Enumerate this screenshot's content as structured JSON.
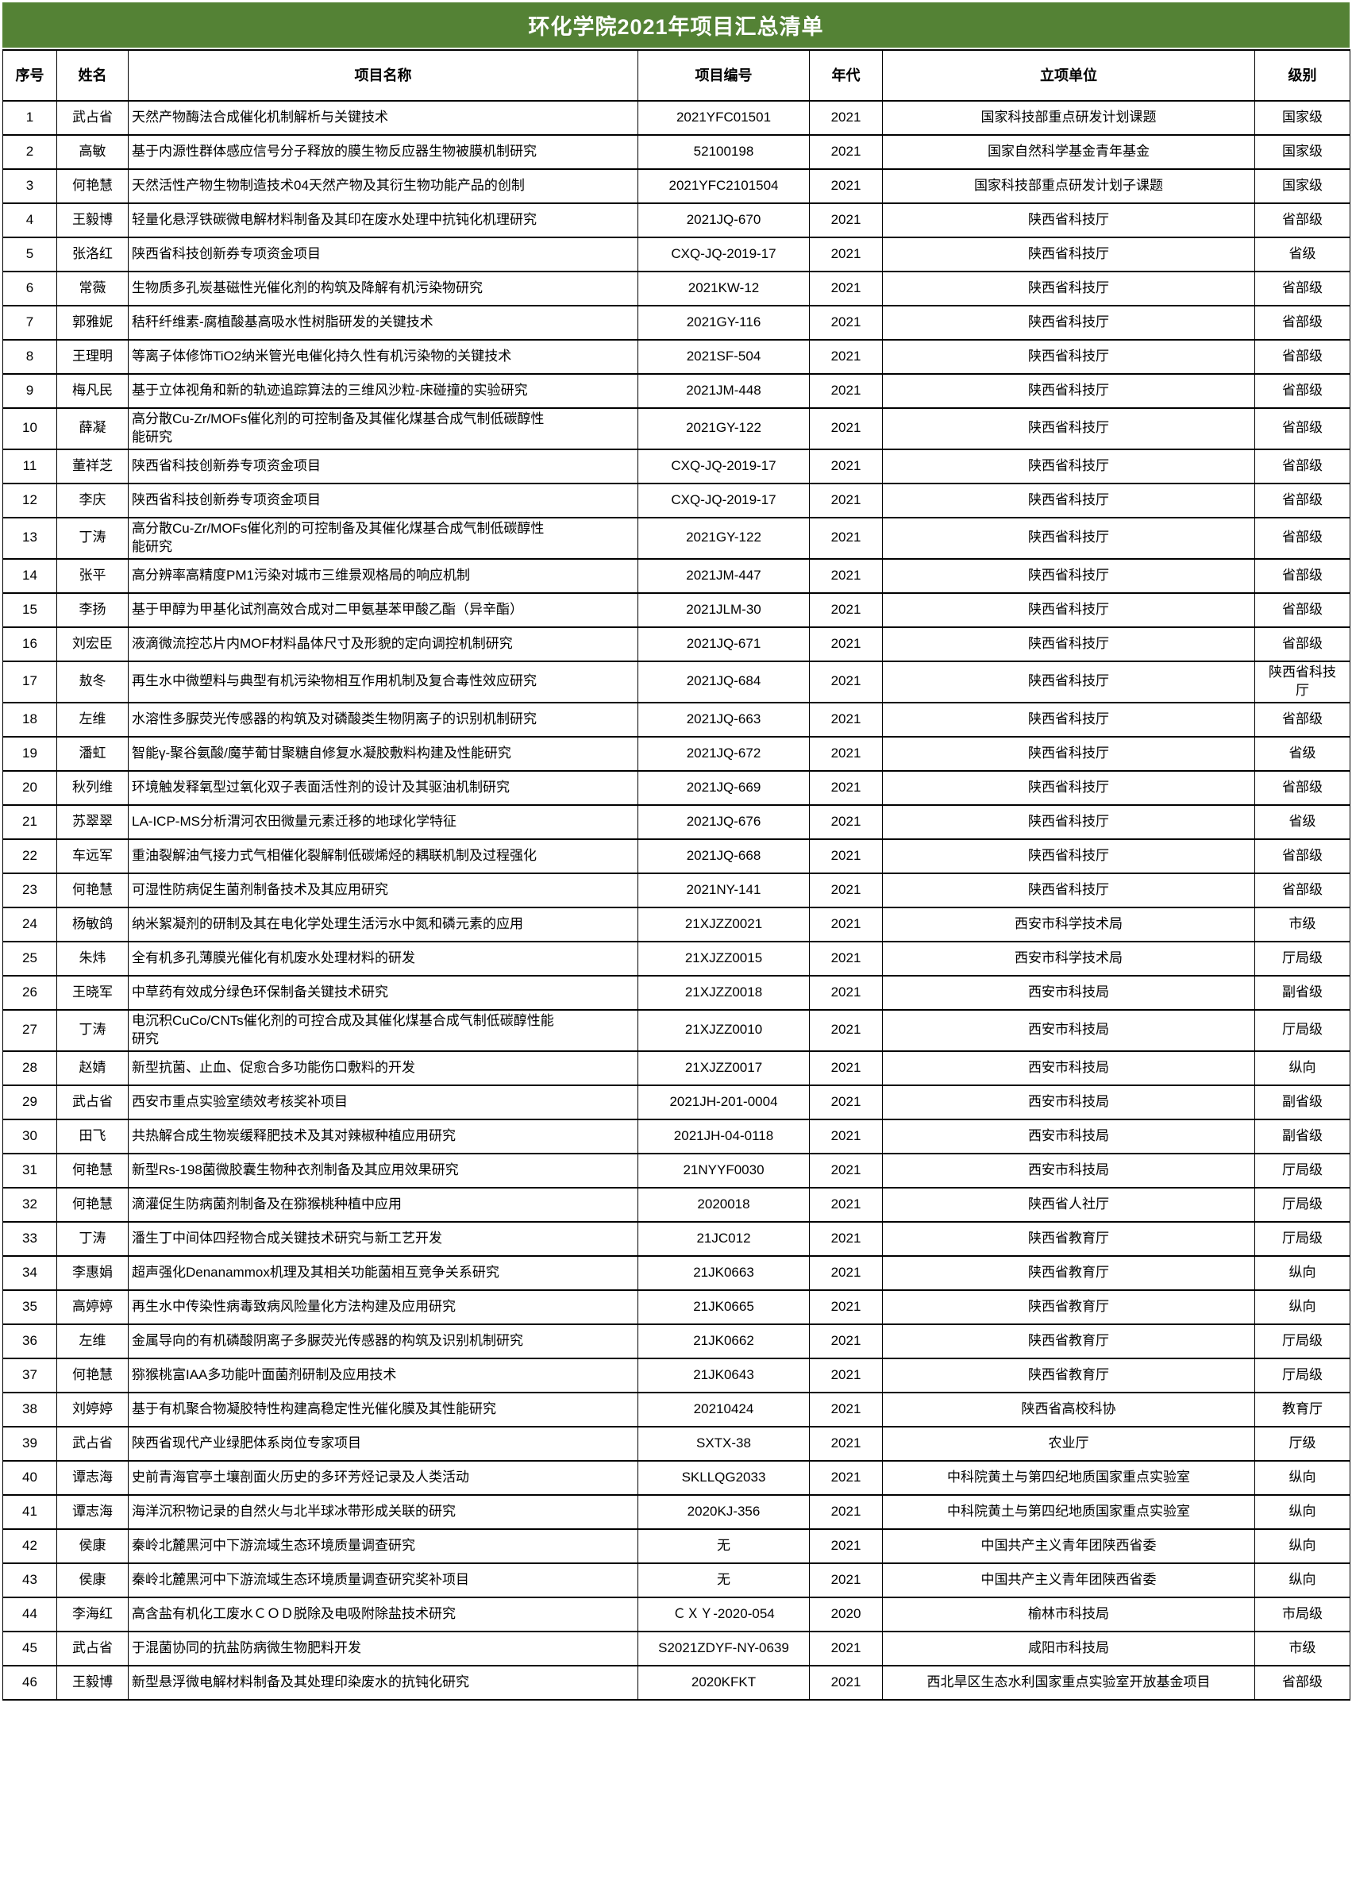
{
  "title": "环化学院2021年项目汇总清单",
  "theme": {
    "title_background": "#548235",
    "title_text_color": "#ffffff",
    "border_color": "#000000",
    "body_background": "#ffffff"
  },
  "table": {
    "columns": [
      "序号",
      "姓名",
      "项目名称",
      "项目编号",
      "年代",
      "立项单位",
      "级别"
    ],
    "rows": [
      [
        "1",
        "武占省",
        "天然产物酶法合成催化机制解析与关键技术",
        "2021YFC01501",
        "2021",
        "国家科技部重点研发计划课题",
        "国家级"
      ],
      [
        "2",
        "高敏",
        "基于内源性群体感应信号分子释放的膜生物反应器生物被膜机制研究",
        "52100198",
        "2021",
        "国家自然科学基金青年基金",
        "国家级"
      ],
      [
        "3",
        "何艳慧",
        "天然活性产物生物制造技术04天然产物及其衍生物功能产品的创制",
        "2021YFC2101504",
        "2021",
        "国家科技部重点研发计划子课题",
        "国家级"
      ],
      [
        "4",
        "王毅博",
        "轻量化悬浮铁碳微电解材料制备及其印在废水处理中抗钝化机理研究",
        "2021JQ-670",
        "2021",
        "陕西省科技厅",
        "省部级"
      ],
      [
        "5",
        "张洛红",
        "陕西省科技创新券专项资金项目",
        "CXQ-JQ-2019-17",
        "2021",
        "陕西省科技厅",
        "省级"
      ],
      [
        "6",
        "常薇",
        "生物质多孔炭基磁性光催化剂的构筑及降解有机污染物研究",
        "2021KW-12",
        "2021",
        "陕西省科技厅",
        "省部级"
      ],
      [
        "7",
        "郭雅妮",
        "秸秆纤维素-腐植酸基高吸水性树脂研发的关键技术",
        "2021GY-116",
        "2021",
        "陕西省科技厅",
        "省部级"
      ],
      [
        "8",
        "王理明",
        "等离子体修饰TiO2纳米管光电催化持久性有机污染物的关键技术",
        "2021SF-504",
        "2021",
        "陕西省科技厅",
        "省部级"
      ],
      [
        "9",
        "梅凡民",
        "基于立体视角和新的轨迹追踪算法的三维风沙粒-床碰撞的实验研究",
        "2021JM-448",
        "2021",
        "陕西省科技厅",
        "省部级"
      ],
      [
        "10",
        "薛凝",
        "高分散Cu-Zr/MOFs催化剂的可控制备及其催化煤基合成气制低碳醇性能研究",
        "2021GY-122",
        "2021",
        "陕西省科技厅",
        "省部级"
      ],
      [
        "11",
        "董祥芝",
        "陕西省科技创新券专项资金项目",
        "CXQ-JQ-2019-17",
        "2021",
        "陕西省科技厅",
        "省部级"
      ],
      [
        "12",
        "李庆",
        "陕西省科技创新券专项资金项目",
        "CXQ-JQ-2019-17",
        "2021",
        "陕西省科技厅",
        "省部级"
      ],
      [
        "13",
        "丁涛",
        "高分散Cu-Zr/MOFs催化剂的可控制备及其催化煤基合成气制低碳醇性能研究",
        "2021GY-122",
        "2021",
        "陕西省科技厅",
        "省部级"
      ],
      [
        "14",
        "张平",
        "高分辨率高精度PM1污染对城市三维景观格局的响应机制",
        "2021JM-447",
        "2021",
        "陕西省科技厅",
        "省部级"
      ],
      [
        "15",
        "李扬",
        "基于甲醇为甲基化试剂高效合成对二甲氨基苯甲酸乙酯（异辛酯）",
        "2021JLM-30",
        "2021",
        "陕西省科技厅",
        "省部级"
      ],
      [
        "16",
        "刘宏臣",
        "液滴微流控芯片内MOF材料晶体尺寸及形貌的定向调控机制研究",
        "2021JQ-671",
        "2021",
        "陕西省科技厅",
        "省部级"
      ],
      [
        "17",
        "敖冬",
        "再生水中微塑料与典型有机污染物相互作用机制及复合毒性效应研究",
        "2021JQ-684",
        "2021",
        "陕西省科技厅",
        "陕西省科技厅"
      ],
      [
        "18",
        "左维",
        "水溶性多脲荧光传感器的构筑及对磷酸类生物阴离子的识别机制研究",
        "2021JQ-663",
        "2021",
        "陕西省科技厅",
        "省部级"
      ],
      [
        "19",
        "潘虹",
        "智能γ-聚谷氨酸/魔芋葡甘聚糖自修复水凝胶敷料构建及性能研究",
        "2021JQ-672",
        "2021",
        "陕西省科技厅",
        "省级"
      ],
      [
        "20",
        "秋列维",
        "环境触发释氧型过氧化双子表面活性剂的设计及其驱油机制研究",
        "2021JQ-669",
        "2021",
        "陕西省科技厅",
        "省部级"
      ],
      [
        "21",
        "苏翠翠",
        "LA-ICP-MS分析渭河农田微量元素迁移的地球化学特征",
        "2021JQ-676",
        "2021",
        "陕西省科技厅",
        "省级"
      ],
      [
        "22",
        "车远军",
        "重油裂解油气接力式气相催化裂解制低碳烯烃的耦联机制及过程强化",
        "2021JQ-668",
        "2021",
        "陕西省科技厅",
        "省部级"
      ],
      [
        "23",
        "何艳慧",
        "可湿性防病促生菌剂制备技术及其应用研究",
        "2021NY-141",
        "2021",
        "陕西省科技厅",
        "省部级"
      ],
      [
        "24",
        "杨敏鸽",
        "纳米絮凝剂的研制及其在电化学处理生活污水中氮和磷元素的应用",
        "21XJZZ0021",
        "2021",
        "西安市科学技术局",
        "市级"
      ],
      [
        "25",
        "朱炜",
        "全有机多孔薄膜光催化有机废水处理材料的研发",
        "21XJZZ0015",
        "2021",
        "西安市科学技术局",
        "厅局级"
      ],
      [
        "26",
        "王晓军",
        "中草药有效成分绿色环保制备关键技术研究",
        "21XJZZ0018",
        "2021",
        "西安市科技局",
        "副省级"
      ],
      [
        "27",
        "丁涛",
        "电沉积CuCo/CNTs催化剂的可控合成及其催化煤基合成气制低碳醇性能研究",
        "21XJZZ0010",
        "2021",
        "西安市科技局",
        "厅局级"
      ],
      [
        "28",
        "赵婧",
        "新型抗菌、止血、促愈合多功能伤口敷料的开发",
        "21XJZZ0017",
        "2021",
        "西安市科技局",
        "纵向"
      ],
      [
        "29",
        "武占省",
        "西安市重点实验室绩效考核奖补项目",
        "2021JH-201-0004",
        "2021",
        "西安市科技局",
        "副省级"
      ],
      [
        "30",
        "田飞",
        "共热解合成生物炭缓释肥技术及其对辣椒种植应用研究",
        "2021JH-04-0118",
        "2021",
        "西安市科技局",
        "副省级"
      ],
      [
        "31",
        "何艳慧",
        "新型Rs-198菌微胶囊生物种衣剂制备及其应用效果研究",
        "21NYYF0030",
        "2021",
        "西安市科技局",
        "厅局级"
      ],
      [
        "32",
        "何艳慧",
        "滴灌促生防病菌剂制备及在猕猴桃种植中应用",
        "2020018",
        "2021",
        "陕西省人社厅",
        "厅局级"
      ],
      [
        "33",
        "丁涛",
        "潘生丁中间体四羟物合成关键技术研究与新工艺开发",
        "21JC012",
        "2021",
        "陕西省教育厅",
        "厅局级"
      ],
      [
        "34",
        "李惠娟",
        "超声强化Denanammox机理及其相关功能菌相互竞争关系研究",
        "21JK0663",
        "2021",
        "陕西省教育厅",
        "纵向"
      ],
      [
        "35",
        "高婷婷",
        "再生水中传染性病毒致病风险量化方法构建及应用研究",
        "21JK0665",
        "2021",
        "陕西省教育厅",
        "纵向"
      ],
      [
        "36",
        "左维",
        "金属导向的有机磷酸阴离子多脲荧光传感器的构筑及识别机制研究",
        "21JK0662",
        "2021",
        "陕西省教育厅",
        "厅局级"
      ],
      [
        "37",
        "何艳慧",
        "猕猴桃富IAA多功能叶面菌剂研制及应用技术",
        "21JK0643",
        "2021",
        "陕西省教育厅",
        "厅局级"
      ],
      [
        "38",
        "刘婷婷",
        "基于有机聚合物凝胶特性构建高稳定性光催化膜及其性能研究",
        "20210424",
        "2021",
        "陕西省高校科协",
        "教育厅"
      ],
      [
        "39",
        "武占省",
        "陕西省现代产业绿肥体系岗位专家项目",
        "SXTX-38",
        "2021",
        "农业厅",
        "厅级"
      ],
      [
        "40",
        "谭志海",
        "史前青海官亭土壤剖面火历史的多环芳烃记录及人类活动",
        "SKLLQG2033",
        "2021",
        "中科院黄土与第四纪地质国家重点实验室",
        "纵向"
      ],
      [
        "41",
        "谭志海",
        "海洋沉积物记录的自然火与北半球冰带形成关联的研究",
        "2020KJ-356",
        "2021",
        "中科院黄土与第四纪地质国家重点实验室",
        "纵向"
      ],
      [
        "42",
        "侯康",
        "秦岭北麓黑河中下游流域生态环境质量调查研究",
        "无",
        "2021",
        "中国共产主义青年团陕西省委",
        "纵向"
      ],
      [
        "43",
        "侯康",
        "秦岭北麓黑河中下游流域生态环境质量调查研究奖补项目",
        "无",
        "2021",
        "中国共产主义青年团陕西省委",
        "纵向"
      ],
      [
        "44",
        "李海红",
        "高含盐有机化工废水ＣＯＤ脱除及电吸附除盐技术研究",
        "ＣＸＹ-2020-054",
        "2020",
        "榆林市科技局",
        "市局级"
      ],
      [
        "45",
        "武占省",
        "于混菌协同的抗盐防病微生物肥料开发",
        "S2021ZDYF-NY-0639",
        "2021",
        "咸阳市科技局",
        "市级"
      ],
      [
        "46",
        "王毅博",
        "新型悬浮微电解材料制备及其处理印染废水的抗钝化研究",
        "2020KFKT",
        "2021",
        "西北旱区生态水利国家重点实验室开放基金项目",
        "省部级"
      ]
    ]
  }
}
